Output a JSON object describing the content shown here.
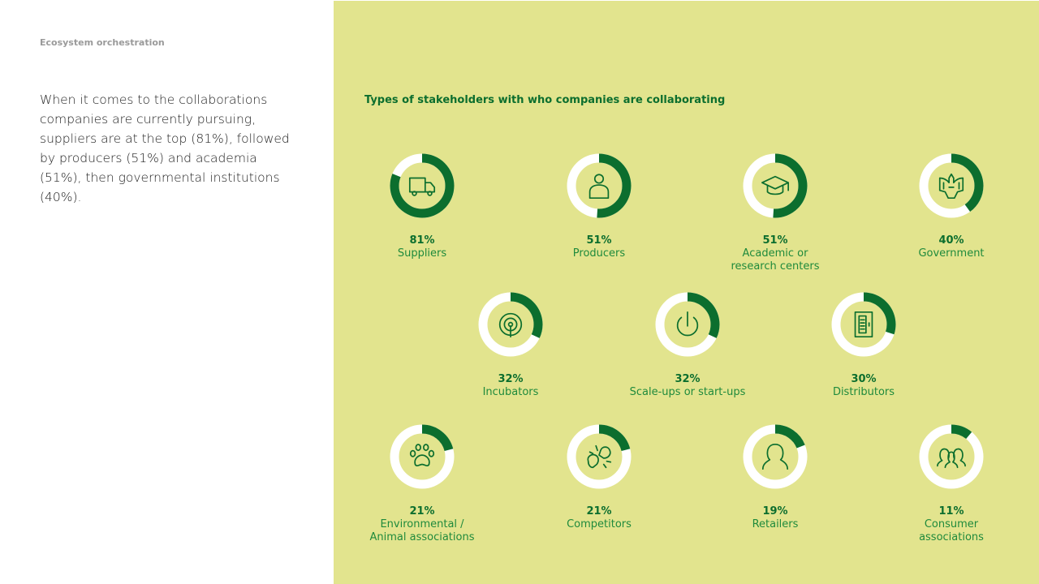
{
  "header": {
    "section_label": "Ecosystem orchestration"
  },
  "intro": {
    "text": "When it comes to the collaborations companies are currently pursuing, suppliers are at the top (81%), followed by producers (51%) and academia (51%), then governmental institutions (40%)."
  },
  "colors": {
    "ring_fill": "#0c6e2e",
    "ring_track": "#ffffff",
    "inner": "#e2e48e",
    "icon": "#0c6e2e",
    "panel": "#e2e48e"
  },
  "chart_data": {
    "type": "donut-grid",
    "title": "Types of stakeholders with who companies are collaborating",
    "unit": "%",
    "items": [
      {
        "label": "Suppliers",
        "value": 81,
        "pct_text": "81%",
        "icon": "truck-icon"
      },
      {
        "label": "Producers",
        "value": 51,
        "pct_text": "51%",
        "icon": "person-icon"
      },
      {
        "label": "Academic or\nresearch centers",
        "value": 51,
        "pct_text": "51%",
        "icon": "graduation-cap-icon"
      },
      {
        "label": "Government",
        "value": 40,
        "pct_text": "40%",
        "icon": "eagle-icon"
      },
      {
        "label": "Incubators",
        "value": 32,
        "pct_text": "32%",
        "icon": "broadcast-icon"
      },
      {
        "label": "Scale-ups or start-ups",
        "value": 32,
        "pct_text": "32%",
        "icon": "power-icon"
      },
      {
        "label": "Distributors",
        "value": 30,
        "pct_text": "30%",
        "icon": "fridge-icon"
      },
      {
        "label": "Environmental /\nAnimal associations",
        "value": 21,
        "pct_text": "21%",
        "icon": "paw-icon"
      },
      {
        "label": "Competitors",
        "value": 21,
        "pct_text": "21%",
        "icon": "boxing-gloves-icon"
      },
      {
        "label": "Retailers",
        "value": 19,
        "pct_text": "19%",
        "icon": "head-icon"
      },
      {
        "label": "Consumer\nassociations",
        "value": 11,
        "pct_text": "11%",
        "icon": "group-icon"
      }
    ]
  }
}
